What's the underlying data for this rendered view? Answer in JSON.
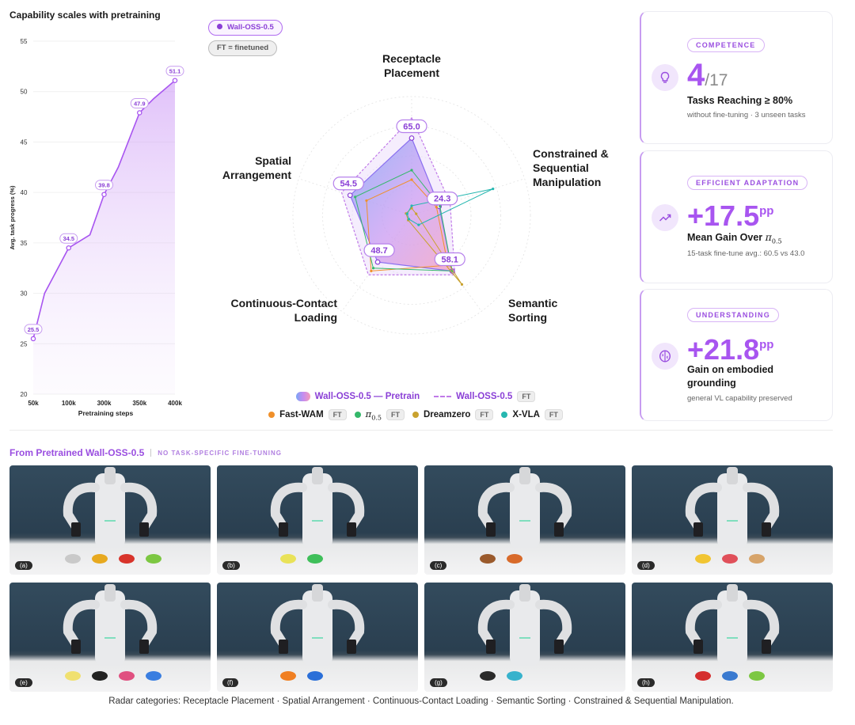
{
  "line_chart_title": "Capability scales with pretraining",
  "chart_data": [
    {
      "type": "line",
      "title": "Capability scales with pretraining",
      "xlabel": "Pretraining steps",
      "ylabel": "Avg. task progress (%)",
      "x": [
        "50k",
        "100k",
        "300k",
        "350k",
        "400k"
      ],
      "x_ticks": [
        "50k",
        "100k",
        "300k",
        "350k",
        "400k"
      ],
      "y_ticks": [
        20,
        25,
        30,
        35,
        40,
        45,
        50,
        55
      ],
      "ylim": [
        20,
        55
      ],
      "points": [
        {
          "x": "50k",
          "xpos": 0.0,
          "y": 25.5
        },
        {
          "x": "",
          "xpos": 0.08,
          "y": 30.0
        },
        {
          "x": "100k",
          "xpos": 0.25,
          "y": 34.5
        },
        {
          "x": "",
          "xpos": 0.4,
          "y": 35.8
        },
        {
          "x": "300k",
          "xpos": 0.5,
          "y": 39.8
        },
        {
          "x": "",
          "xpos": 0.6,
          "y": 42.5
        },
        {
          "x": "350k",
          "xpos": 0.75,
          "y": 47.9
        },
        {
          "x": "",
          "xpos": 0.85,
          "y": 49.3
        },
        {
          "x": "400k",
          "xpos": 1.0,
          "y": 51.1
        }
      ],
      "data_labels": [
        "25.5",
        "34.5",
        "39.8",
        "47.9",
        "51.1"
      ],
      "grid": true,
      "fill": "area gradient purple"
    },
    {
      "type": "radar",
      "axes": [
        "Receptacle Placement",
        "Constrained & Sequential Manipulation",
        "Semantic Sorting",
        "Continuous-Contact Loading",
        "Spatial Arrangement"
      ],
      "axis_titles": [
        [
          "Receptacle",
          "Placement"
        ],
        [
          "Constrained &",
          "Sequential",
          "Manipulation"
        ],
        [
          "Semantic",
          "Sorting"
        ],
        [
          "Continuous-Contact",
          "Loading"
        ],
        [
          "Spatial",
          "Arrangement"
        ]
      ],
      "range": [
        0,
        100
      ],
      "series": [
        {
          "name": "Wall-OSS-0.5 — Pretrain",
          "values": [
            65.0,
            24.3,
            58.1,
            48.7,
            54.5
          ],
          "color": "#8a3fd6",
          "style": "gradient fill"
        },
        {
          "name": "Wall-OSS-0.5",
          "tag": "FT",
          "values": [
            82,
            34,
            62,
            62,
            62
          ],
          "color": "#c07ae8",
          "style": "dashed"
        },
        {
          "name": "Fast-WAM",
          "tag": "FT",
          "values": [
            30,
            22,
            52,
            58,
            40
          ],
          "color": "#f0902a"
        },
        {
          "name": "π0.5",
          "tag": "FT",
          "values": [
            38,
            25,
            58,
            55,
            50
          ],
          "color": "#35b86a"
        },
        {
          "name": "Dreamzero",
          "tag": "FT",
          "values": [
            6,
            4,
            72,
            5,
            5
          ],
          "color": "#c9a22f"
        },
        {
          "name": "X-VLA",
          "tag": "FT",
          "values": [
            8,
            72,
            10,
            4,
            4
          ],
          "color": "#26b7b0"
        }
      ],
      "data_labels": [
        "65.0",
        "24.3",
        "58.1",
        "48.7",
        "54.5"
      ]
    }
  ],
  "radar_pills": {
    "model": "Wall-OSS-0.5",
    "ft": "FT = finetuned"
  },
  "legend": {
    "pretrain": "Wall-OSS-0.5 — Pretrain",
    "finetuned": "Wall-OSS-0.5",
    "ft": "FT",
    "fastwam": "Fast-WAM",
    "pi_base": "π",
    "pi_sub": "0.5",
    "dreamzero": "Dreamzero",
    "xvla": "X-VLA"
  },
  "cards": [
    {
      "tag": "COMPETENCE",
      "icon": "lightbulb-icon",
      "value": "4",
      "value_suffix": "/17",
      "title": "Tasks Reaching ≥ 80%",
      "note": "without fine-tuning · 3 unseen tasks"
    },
    {
      "tag": "EFFICIENT ADAPTATION",
      "icon": "trending-up-icon",
      "value": "+17.5",
      "value_suffix": "pp",
      "title": "Mean Gain Over",
      "title_math": "π",
      "title_math_sub": "0.5",
      "note": "15-task fine-tune avg.: 60.5 vs 43.0"
    },
    {
      "tag": "UNDERSTANDING",
      "icon": "brain-icon",
      "value": "+21.8",
      "value_suffix": "pp",
      "title": "Gain on embodied grounding",
      "note": "general VL capability preserved"
    }
  ],
  "gallery": {
    "title": "From Pretrained Wall-OSS-0.5",
    "note": "NO TASK-SPECIFIC FINE-TUNING",
    "items": [
      {
        "label": "(a)",
        "props": [
          {
            "c": "#c9c9c9"
          },
          {
            "c": "#e7a91f"
          },
          {
            "c": "#d8342b"
          },
          {
            "c": "#7cc742"
          }
        ]
      },
      {
        "label": "(b)",
        "props": [
          {
            "c": "#e9e258"
          },
          {
            "c": "#3fbf5a"
          }
        ]
      },
      {
        "label": "(c)",
        "props": [
          {
            "c": "#9a5a2c"
          },
          {
            "c": "#d86a2a"
          }
        ]
      },
      {
        "label": "(d)",
        "props": [
          {
            "c": "#f1c532"
          },
          {
            "c": "#e0505a"
          },
          {
            "c": "#d7a46a"
          }
        ]
      },
      {
        "label": "(e)",
        "props": [
          {
            "c": "#f0e070"
          },
          {
            "c": "#222222"
          },
          {
            "c": "#e05080"
          },
          {
            "c": "#3a7ee0"
          }
        ]
      },
      {
        "label": "(f)",
        "props": [
          {
            "c": "#f07f22"
          },
          {
            "c": "#2a6fd8"
          }
        ]
      },
      {
        "label": "(g)",
        "props": [
          {
            "c": "#2a2a2a"
          },
          {
            "c": "#37b2cc"
          }
        ]
      },
      {
        "label": "(h)",
        "props": [
          {
            "c": "#d52f2f"
          },
          {
            "c": "#3a7ad0"
          },
          {
            "c": "#7cc742"
          }
        ]
      }
    ]
  },
  "caption": "Radar categories: Receptacle Placement · Spatial Arrangement · Continuous-Contact Loading · Semantic Sorting · Constrained & Sequential Manipulation.",
  "colors": {
    "accent": "#a855f0",
    "accent_dark": "#8a3fd6",
    "accent_light": "#d8b4f6"
  }
}
